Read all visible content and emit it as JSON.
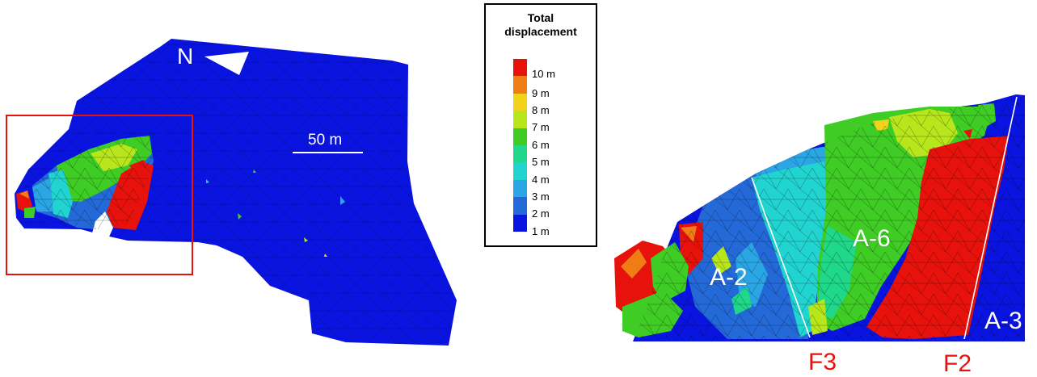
{
  "left_panel": {
    "north_label": "N",
    "scale_label": "50 m"
  },
  "legend": {
    "title_line1": "Total",
    "title_line2": "displacement",
    "items": [
      {
        "label": "10 m",
        "color": "#e8120c"
      },
      {
        "label": "9 m",
        "color": "#f07c16"
      },
      {
        "label": "8 m",
        "color": "#f2d21a"
      },
      {
        "label": "7 m",
        "color": "#b8e61c"
      },
      {
        "label": "6 m",
        "color": "#3fcc24"
      },
      {
        "label": "5 m",
        "color": "#1fd88a"
      },
      {
        "label": "4 m",
        "color": "#22d4d0"
      },
      {
        "label": "3 m",
        "color": "#2aa6e4"
      },
      {
        "label": "2 m",
        "color": "#2469d8"
      },
      {
        "label": "1 m",
        "color": "#0a14e0"
      }
    ]
  },
  "right_panel": {
    "zone_a2": "A-2",
    "zone_a6": "A-6",
    "zone_a3": "A-3",
    "fault_f3": "F3",
    "fault_f2": "F2",
    "fault_label_color": "#e8120c"
  }
}
